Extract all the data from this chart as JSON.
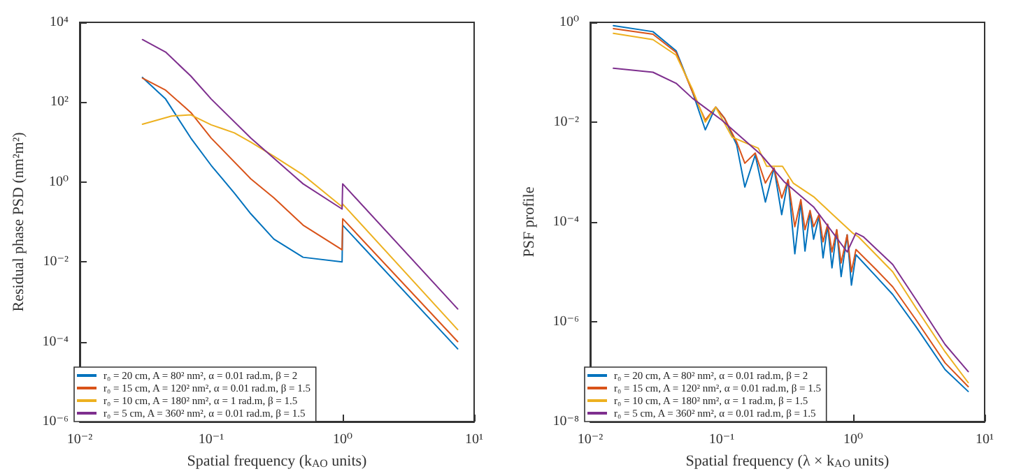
{
  "chart_data": [
    {
      "type": "line",
      "xlabel": "Spatial frequency (k$_{AO}$ units)",
      "ylabel": "Residual phase PSD (nm²m²)",
      "log": "xy",
      "grid": false,
      "legend": "bottom left",
      "marker": "none",
      "line_style": "solid",
      "xlim": [
        0.01,
        10
      ],
      "xticks": [
        {
          "value": 0.01,
          "label": "10⁻²"
        },
        {
          "value": 0.1,
          "label": "10⁻¹"
        },
        {
          "value": 1,
          "label": "10⁰"
        },
        {
          "value": 10,
          "label": "10¹"
        }
      ],
      "ylim": [
        1e-06,
        10000
      ],
      "yticks": [
        {
          "value": 1e-06,
          "label": "10⁻⁶"
        },
        {
          "value": 0.0001,
          "label": "10⁻⁴"
        },
        {
          "value": 0.01,
          "label": "10⁻²"
        },
        {
          "value": 1,
          "label": "10⁰"
        },
        {
          "value": 100,
          "label": "10²"
        },
        {
          "value": 10000,
          "label": "10⁴"
        }
      ],
      "series": [
        {
          "name": "r₀ = 20 cm, A = 80² nm², α = 0.01 rad.m, β = 2",
          "color": "#0072bd",
          "x": [
            0.03,
            0.045,
            0.07,
            0.1,
            0.15,
            0.2,
            0.3,
            0.5,
            0.99,
            1.0,
            7.5
          ],
          "values": [
            417,
            120,
            12.6,
            2.6,
            0.53,
            0.16,
            0.037,
            0.013,
            0.01,
            0.083,
            6.6e-05
          ]
        },
        {
          "name": "r₀ = 15 cm, A = 120² nm², α = 0.01 rad.m, β = 1.5",
          "color": "#d95319",
          "x": [
            0.03,
            0.045,
            0.07,
            0.1,
            0.2,
            0.3,
            0.5,
            0.99,
            1.0,
            7.5
          ],
          "values": [
            400,
            200,
            55,
            12.6,
            1.2,
            0.4,
            0.083,
            0.02,
            0.12,
            0.0001
          ]
        },
        {
          "name": "r₀ = 10 cm, A = 180² nm², α = 1 rad.m, β = 1.5",
          "color": "#edb120",
          "x": [
            0.03,
            0.05,
            0.07,
            0.1,
            0.12,
            0.15,
            0.2,
            0.3,
            0.5,
            0.99,
            1.0,
            7.5
          ],
          "values": [
            28,
            45,
            48,
            27,
            22,
            17,
            10,
            4.4,
            1.5,
            0.24,
            0.28,
            0.0002
          ]
        },
        {
          "name": "r₀ = 5 cm, A = 360² nm², α = 0.01 rad.m, β = 1.5",
          "color": "#7e2f8e",
          "x": [
            0.03,
            0.045,
            0.07,
            0.1,
            0.2,
            0.5,
            0.99,
            1.0,
            7.5
          ],
          "values": [
            3700,
            1800,
            450,
            120,
            12.6,
            0.9,
            0.21,
            0.9,
            0.00066
          ]
        }
      ]
    },
    {
      "type": "line",
      "xlabel": "Spatial frequency (λ × k$_{AO}$ units)",
      "ylabel": "PSF profile",
      "log": "xy",
      "grid": false,
      "legend": "bottom left",
      "marker": "none",
      "line_style": "solid",
      "xlim": [
        0.01,
        10
      ],
      "xticks": [
        {
          "value": 0.01,
          "label": "10⁻²"
        },
        {
          "value": 0.1,
          "label": "10⁻¹"
        },
        {
          "value": 1,
          "label": "10⁰"
        },
        {
          "value": 10,
          "label": "10¹"
        }
      ],
      "ylim": [
        1e-08,
        1
      ],
      "yticks": [
        {
          "value": 1e-08,
          "label": "10⁻⁸"
        },
        {
          "value": 1e-06,
          "label": "10⁻⁶"
        },
        {
          "value": 0.0001,
          "label": "10⁻⁴"
        },
        {
          "value": 0.01,
          "label": "10⁻²"
        },
        {
          "value": 1,
          "label": "10⁰"
        }
      ],
      "series": [
        {
          "name": "r₀ = 20 cm, A = 80² nm², α = 0.01 rad.m, β = 2",
          "color": "#0072bd",
          "x": [
            0.015,
            0.03,
            0.045,
            0.06,
            0.075,
            0.09,
            0.105,
            0.13,
            0.15,
            0.18,
            0.215,
            0.25,
            0.286,
            0.32,
            0.36,
            0.4,
            0.43,
            0.47,
            0.5,
            0.55,
            0.59,
            0.64,
            0.69,
            0.75,
            0.81,
            0.9,
            0.97,
            1.05,
            1.5,
            2,
            3,
            5,
            7.5
          ],
          "values": [
            0.86,
            0.65,
            0.27,
            0.04,
            0.007,
            0.02,
            0.012,
            0.0035,
            0.0005,
            0.0022,
            0.00025,
            0.0012,
            0.00014,
            0.0007,
            2.3e-05,
            0.00025,
            2.6e-05,
            0.00016,
            4.5e-05,
            0.00013,
            1.9e-05,
            8.5e-05,
            1.2e-05,
            6.8e-05,
            8e-06,
            5.5e-05,
            5.4e-06,
            2.2e-05,
            8e-06,
            3.5e-06,
            8e-07,
            1.1e-07,
            4e-08
          ]
        },
        {
          "name": "r₀ = 15 cm, A = 120² nm², α = 0.01 rad.m, β = 1.5",
          "color": "#d95319",
          "x": [
            0.015,
            0.03,
            0.045,
            0.06,
            0.075,
            0.09,
            0.105,
            0.13,
            0.15,
            0.18,
            0.215,
            0.25,
            0.286,
            0.32,
            0.36,
            0.4,
            0.43,
            0.47,
            0.5,
            0.55,
            0.59,
            0.64,
            0.69,
            0.75,
            0.81,
            0.9,
            0.97,
            1.05,
            1.5,
            2,
            3,
            5,
            7.5
          ],
          "values": [
            0.75,
            0.58,
            0.25,
            0.04,
            0.011,
            0.02,
            0.012,
            0.004,
            0.0015,
            0.0024,
            0.0006,
            0.0012,
            0.0003,
            0.0007,
            8e-05,
            0.00028,
            7e-05,
            0.00017,
            8e-05,
            0.00014,
            4e-05,
            9e-05,
            2.5e-05,
            7e-05,
            1.5e-05,
            5.5e-05,
            1e-05,
            2.8e-05,
            1.1e-05,
            5e-06,
            1.1e-06,
            1.5e-07,
            5e-08
          ]
        },
        {
          "name": "r₀ = 10 cm, A = 180² nm², α = 1 rad.m, β = 1.5",
          "color": "#edb120",
          "x": [
            0.015,
            0.03,
            0.045,
            0.06,
            0.075,
            0.09,
            0.12,
            0.19,
            0.22,
            0.29,
            0.35,
            0.5,
            0.7,
            0.99,
            1.1,
            2,
            3,
            5,
            7.5
          ],
          "values": [
            0.6,
            0.45,
            0.22,
            0.045,
            0.01,
            0.02,
            0.005,
            0.003,
            0.0013,
            0.0013,
            0.0006,
            0.00032,
            0.00014,
            6e-05,
            5e-05,
            1e-05,
            1.9e-06,
            2.5e-07,
            6e-08
          ]
        },
        {
          "name": "r₀ = 5 cm, A = 360² nm², α = 0.01 rad.m, β = 1.5",
          "color": "#7e2f8e",
          "x": [
            0.015,
            0.03,
            0.045,
            0.06,
            0.1,
            0.2,
            0.3,
            0.5,
            0.9,
            1.05,
            1.2,
            2,
            3,
            5,
            7.5
          ],
          "values": [
            0.12,
            0.1,
            0.06,
            0.03,
            0.011,
            0.0022,
            0.00063,
            0.0002,
            2.5e-05,
            6e-05,
            5e-05,
            1.4e-05,
            2.8e-06,
            3.5e-07,
            1e-07
          ]
        }
      ]
    }
  ]
}
